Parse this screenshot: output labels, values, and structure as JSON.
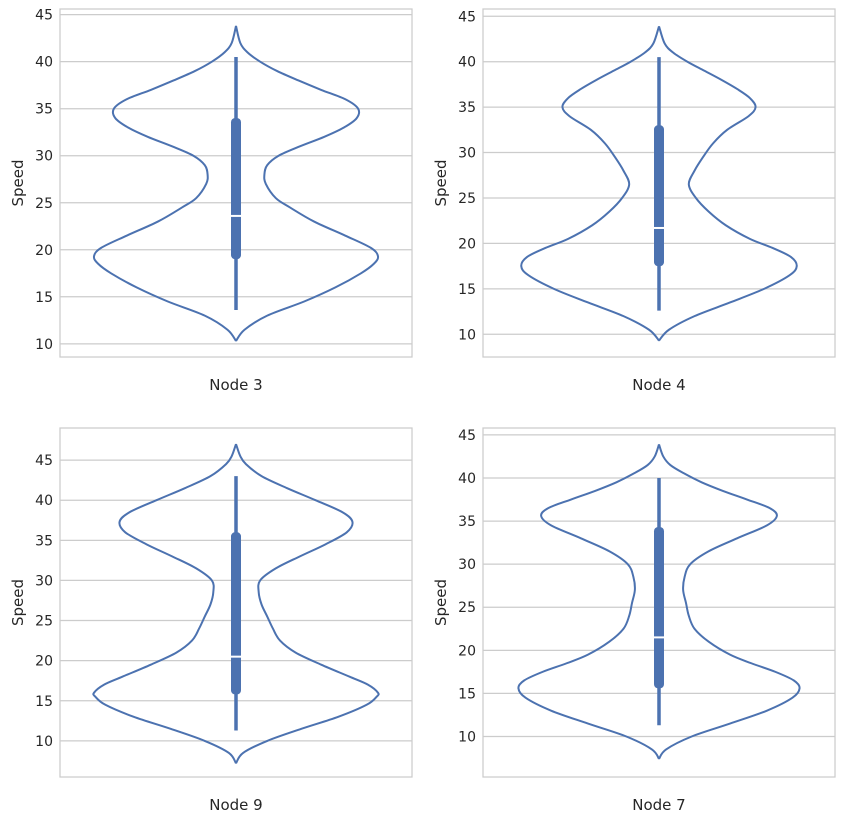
{
  "chart_data": [
    {
      "type": "violin",
      "xlabel": "Node 3",
      "ylabel": "Speed",
      "yticks": [
        10,
        15,
        20,
        25,
        30,
        35,
        40,
        45
      ],
      "ylim": [
        8.6,
        45.6
      ],
      "grid": "y",
      "color": "#4c72b0",
      "box": {
        "whisker_low": 13.6,
        "q1": 19.0,
        "median": 23.6,
        "q3": 34.0,
        "whisker_high": 40.5
      },
      "density": {
        "y": [
          10.3,
          11.5,
          13.0,
          14.5,
          16.0,
          17.5,
          18.5,
          19.3,
          20.2,
          21.5,
          23.0,
          24.5,
          25.5,
          27.0,
          28.0,
          29.0,
          30.0,
          31.0,
          32.0,
          33.0,
          34.0,
          35.0,
          36.0,
          37.0,
          38.0,
          39.0,
          40.0,
          41.0,
          42.0,
          43.8
        ],
        "width": [
          0.0,
          0.06,
          0.22,
          0.48,
          0.7,
          0.88,
          0.97,
          1.0,
          0.95,
          0.77,
          0.55,
          0.38,
          0.28,
          0.21,
          0.2,
          0.22,
          0.3,
          0.45,
          0.62,
          0.76,
          0.85,
          0.86,
          0.77,
          0.6,
          0.44,
          0.29,
          0.17,
          0.08,
          0.03,
          0.0
        ]
      }
    },
    {
      "type": "violin",
      "xlabel": "Node 4",
      "ylabel": "Speed",
      "yticks": [
        10,
        15,
        20,
        25,
        30,
        35,
        40,
        45
      ],
      "ylim": [
        7.5,
        45.8
      ],
      "grid": "y",
      "color": "#4c72b0",
      "box": {
        "whisker_low": 12.6,
        "q1": 17.5,
        "median": 21.7,
        "q3": 33.0,
        "whisker_high": 40.5
      },
      "density": {
        "y": [
          9.3,
          10.5,
          12.0,
          13.5,
          15.0,
          16.5,
          17.5,
          18.5,
          19.5,
          20.5,
          22.0,
          23.5,
          25.0,
          26.5,
          28.0,
          29.5,
          31.0,
          32.5,
          34.0,
          35.0,
          36.0,
          37.0,
          38.0,
          39.0,
          40.0,
          41.0,
          42.0,
          43.9
        ],
        "width": [
          0.0,
          0.07,
          0.25,
          0.5,
          0.74,
          0.92,
          0.97,
          0.93,
          0.8,
          0.64,
          0.47,
          0.35,
          0.26,
          0.21,
          0.25,
          0.31,
          0.38,
          0.48,
          0.63,
          0.68,
          0.64,
          0.55,
          0.44,
          0.32,
          0.2,
          0.1,
          0.04,
          0.0
        ]
      }
    },
    {
      "type": "violin",
      "xlabel": "Node 9",
      "ylabel": "Speed",
      "yticks": [
        10,
        15,
        20,
        25,
        30,
        35,
        40,
        45
      ],
      "ylim": [
        5.5,
        49.0
      ],
      "grid": "y",
      "color": "#4c72b0",
      "box": {
        "whisker_low": 11.3,
        "q1": 15.8,
        "median": 20.5,
        "q3": 36.0,
        "whisker_high": 43.0
      },
      "density": {
        "y": [
          7.2,
          8.5,
          10.0,
          11.5,
          13.0,
          14.5,
          15.5,
          16.0,
          17.0,
          18.0,
          19.5,
          21.0,
          22.5,
          24.0,
          25.5,
          27.0,
          28.5,
          30.0,
          31.5,
          33.0,
          34.5,
          36.0,
          37.3,
          38.5,
          40.0,
          41.5,
          43.0,
          44.5,
          45.5,
          47.0
        ],
        "width": [
          0.0,
          0.05,
          0.22,
          0.46,
          0.72,
          0.92,
          0.99,
          1.0,
          0.93,
          0.8,
          0.6,
          0.42,
          0.31,
          0.26,
          0.22,
          0.18,
          0.16,
          0.17,
          0.28,
          0.45,
          0.63,
          0.78,
          0.82,
          0.75,
          0.56,
          0.36,
          0.18,
          0.07,
          0.03,
          0.0
        ]
      }
    },
    {
      "type": "violin",
      "xlabel": "Node 7",
      "ylabel": "Speed",
      "yticks": [
        10,
        15,
        20,
        25,
        30,
        35,
        40,
        45
      ],
      "ylim": [
        5.3,
        45.8
      ],
      "grid": "y",
      "color": "#4c72b0",
      "box": {
        "whisker_low": 11.3,
        "q1": 15.6,
        "median": 21.5,
        "q3": 34.3,
        "whisker_high": 40.0
      },
      "density": {
        "y": [
          7.4,
          8.5,
          10.0,
          11.5,
          13.0,
          14.5,
          15.6,
          16.5,
          17.5,
          18.5,
          19.5,
          21.0,
          22.5,
          24.0,
          25.5,
          27.0,
          28.5,
          30.0,
          31.5,
          33.0,
          34.5,
          35.6,
          36.5,
          37.5,
          38.5,
          39.5,
          40.5,
          41.5,
          42.5,
          43.9
        ],
        "width": [
          0.0,
          0.05,
          0.23,
          0.5,
          0.76,
          0.94,
          0.99,
          0.95,
          0.82,
          0.65,
          0.5,
          0.35,
          0.25,
          0.21,
          0.19,
          0.17,
          0.18,
          0.22,
          0.35,
          0.55,
          0.76,
          0.83,
          0.78,
          0.62,
          0.45,
          0.3,
          0.18,
          0.08,
          0.03,
          0.0
        ]
      }
    }
  ]
}
